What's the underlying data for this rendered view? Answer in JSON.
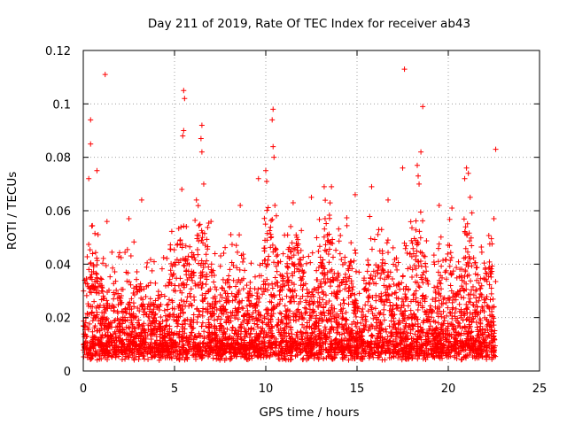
{
  "chart_data": {
    "type": "scatter",
    "title": "Day 211 of 2019, Rate Of TEC Index for receiver ab43",
    "xlabel": "GPS time / hours",
    "ylabel": "ROTI / TECUs",
    "xlim": [
      0,
      25
    ],
    "ylim": [
      0,
      0.12
    ],
    "xticks": [
      0,
      5,
      10,
      15,
      20,
      25
    ],
    "xtick_labels": [
      "0",
      "5",
      "10",
      "15",
      "20",
      "25"
    ],
    "yticks": [
      0,
      0.02,
      0.04,
      0.06,
      0.08,
      0.1,
      0.12
    ],
    "ytick_labels": [
      "0",
      "0.02",
      "0.04",
      "0.06",
      "0.08",
      "0.1",
      "0.12"
    ],
    "grid": true,
    "marker": "plus",
    "color": "#ff0000",
    "data_range_hours": [
      0,
      22.6
    ],
    "series": [
      {
        "points": [
          [
            1.2,
            0.111
          ],
          [
            0.4,
            0.094
          ],
          [
            0.4,
            0.085
          ],
          [
            0.75,
            0.075
          ],
          [
            0.3,
            0.072
          ],
          [
            5.5,
            0.105
          ],
          [
            5.55,
            0.102
          ],
          [
            5.5,
            0.09
          ],
          [
            5.45,
            0.088
          ],
          [
            6.5,
            0.092
          ],
          [
            6.45,
            0.087
          ],
          [
            6.5,
            0.082
          ],
          [
            6.6,
            0.07
          ],
          [
            5.4,
            0.068
          ],
          [
            6.2,
            0.064
          ],
          [
            10.4,
            0.098
          ],
          [
            10.35,
            0.094
          ],
          [
            10.4,
            0.084
          ],
          [
            10.45,
            0.08
          ],
          [
            10.0,
            0.075
          ],
          [
            10.05,
            0.071
          ],
          [
            9.6,
            0.072
          ],
          [
            10.5,
            0.062
          ],
          [
            3.2,
            0.064
          ],
          [
            11.5,
            0.063
          ],
          [
            17.6,
            0.113
          ],
          [
            18.6,
            0.099
          ],
          [
            18.5,
            0.082
          ],
          [
            17.5,
            0.076
          ],
          [
            18.3,
            0.077
          ],
          [
            18.35,
            0.073
          ],
          [
            18.4,
            0.07
          ],
          [
            21.0,
            0.076
          ],
          [
            21.1,
            0.074
          ],
          [
            20.9,
            0.072
          ],
          [
            22.6,
            0.083
          ],
          [
            22.5,
            0.057
          ],
          [
            21.2,
            0.065
          ],
          [
            20.2,
            0.061
          ],
          [
            15.8,
            0.069
          ],
          [
            14.9,
            0.066
          ],
          [
            13.2,
            0.069
          ],
          [
            13.6,
            0.069
          ],
          [
            12.5,
            0.065
          ],
          [
            16.7,
            0.064
          ],
          [
            19.5,
            0.062
          ],
          [
            8.6,
            0.062
          ],
          [
            2.5,
            0.057
          ],
          [
            1.3,
            0.056
          ],
          [
            7.0,
            0.056
          ]
        ]
      }
    ]
  }
}
